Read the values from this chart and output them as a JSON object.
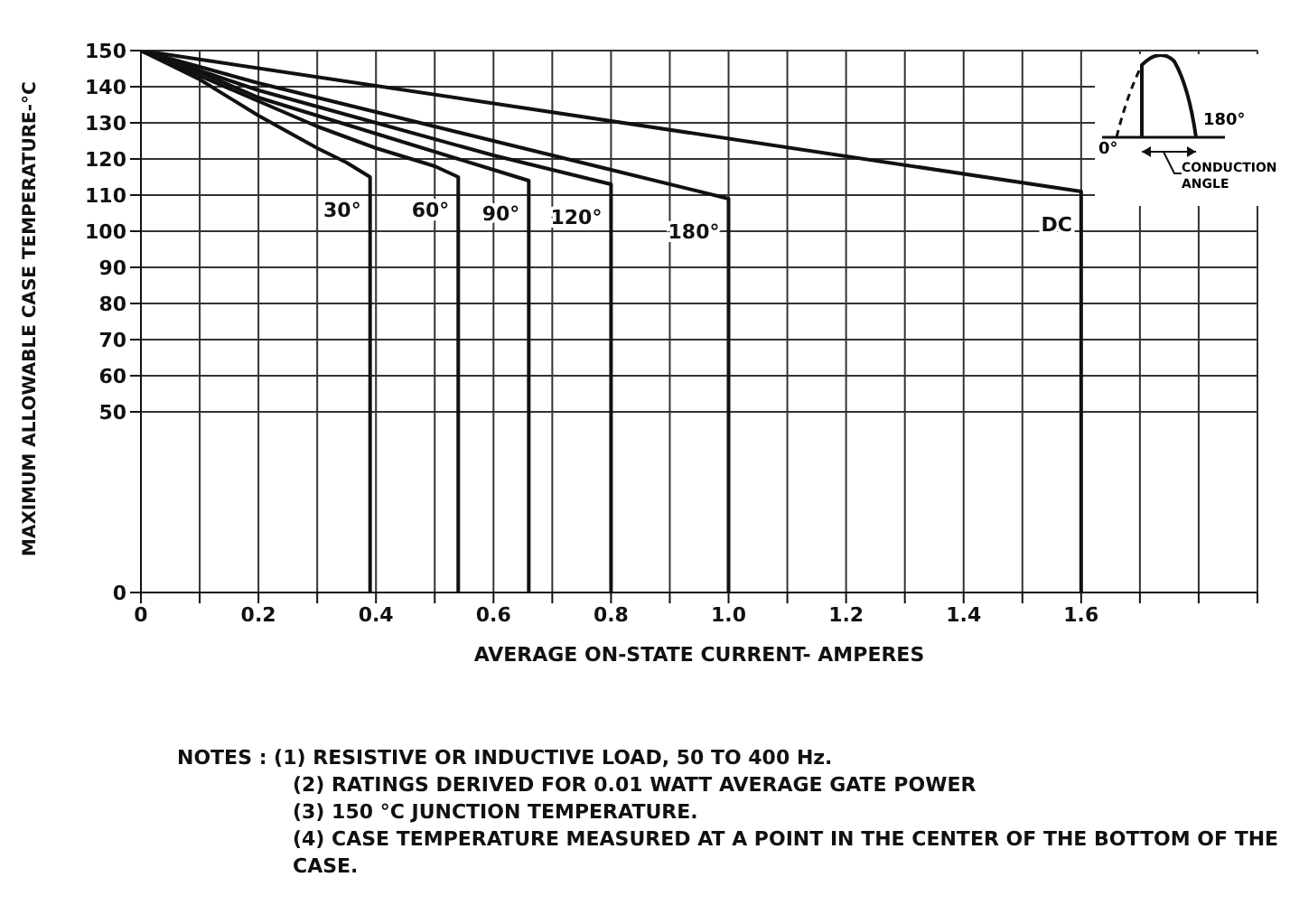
{
  "chart_data": {
    "type": "line",
    "xlabel": "AVERAGE ON-STATE CURRENT- AMPERES",
    "ylabel": "MAXIMUM ALLOWABLE CASE TEMPERATURE-°C",
    "xlim": [
      0,
      1.9
    ],
    "xticks": [
      0,
      {
        "value": 0.1,
        "label": null
      },
      0.2,
      {
        "value": 0.3,
        "label": null
      },
      0.4,
      {
        "value": 0.5,
        "label": null
      },
      0.6,
      {
        "value": 0.7,
        "label": null
      },
      0.8,
      {
        "value": 0.9,
        "label": null
      },
      {
        "value": 1.0,
        "label": "1.0"
      },
      {
        "value": 1.1,
        "label": null
      },
      1.2,
      {
        "value": 1.3,
        "label": null
      },
      1.4,
      {
        "value": 1.5,
        "label": null
      },
      1.6,
      {
        "value": 1.7,
        "label": null
      },
      {
        "value": 1.8,
        "label": null
      },
      {
        "value": 1.9,
        "label": null
      }
    ],
    "ylim": [
      0,
      150
    ],
    "yticks": [
      0,
      50,
      60,
      70,
      80,
      90,
      100,
      110,
      120,
      130,
      140,
      150
    ],
    "grid": true,
    "legend": false,
    "marker": "none",
    "line_style": "solid",
    "series": [
      {
        "name": "30°",
        "color": "#111111",
        "x": [
          0,
          0.1,
          0.2,
          0.3,
          0.35,
          0.39,
          0.39
        ],
        "values": [
          150,
          142,
          132,
          123,
          119,
          115,
          0
        ]
      },
      {
        "name": "60°",
        "color": "#111111",
        "x": [
          0,
          0.1,
          0.2,
          0.3,
          0.4,
          0.5,
          0.54,
          0.54
        ],
        "values": [
          150,
          143,
          136,
          129,
          123,
          118,
          115,
          0
        ]
      },
      {
        "name": "90°",
        "color": "#111111",
        "x": [
          0,
          0.1,
          0.2,
          0.4,
          0.6,
          0.66,
          0.66
        ],
        "values": [
          150,
          144,
          137,
          127,
          117,
          114,
          0
        ]
      },
      {
        "name": "120°",
        "color": "#111111",
        "x": [
          0,
          0.2,
          0.4,
          0.6,
          0.8,
          0.8
        ],
        "values": [
          150,
          139,
          130,
          121,
          113,
          0
        ]
      },
      {
        "name": "180°",
        "color": "#111111",
        "x": [
          0,
          0.2,
          0.4,
          0.6,
          0.8,
          1.0,
          1.0
        ],
        "values": [
          150,
          141,
          133,
          125,
          117,
          109,
          0
        ]
      },
      {
        "name": "DC",
        "color": "#111111",
        "x": [
          0,
          1.6,
          1.6
        ],
        "values": [
          150,
          111,
          0
        ]
      }
    ],
    "annotations": [
      "NOTES : (1) RESISTIVE OR INDUCTIVE LOAD, 50 TO 400 Hz.",
      "(2) RATINGS DERIVED FOR 0.01 WATT AVERAGE GATE POWER",
      "(3) 150 °C JUNCTION TEMPERATURE.",
      "(4) CASE TEMPERATURE MEASURED AT A POINT IN THE CENTER OF THE BOTTOM OF THE CASE.",
      "0°",
      "180°",
      "CONDUCTION ANGLE"
    ]
  }
}
